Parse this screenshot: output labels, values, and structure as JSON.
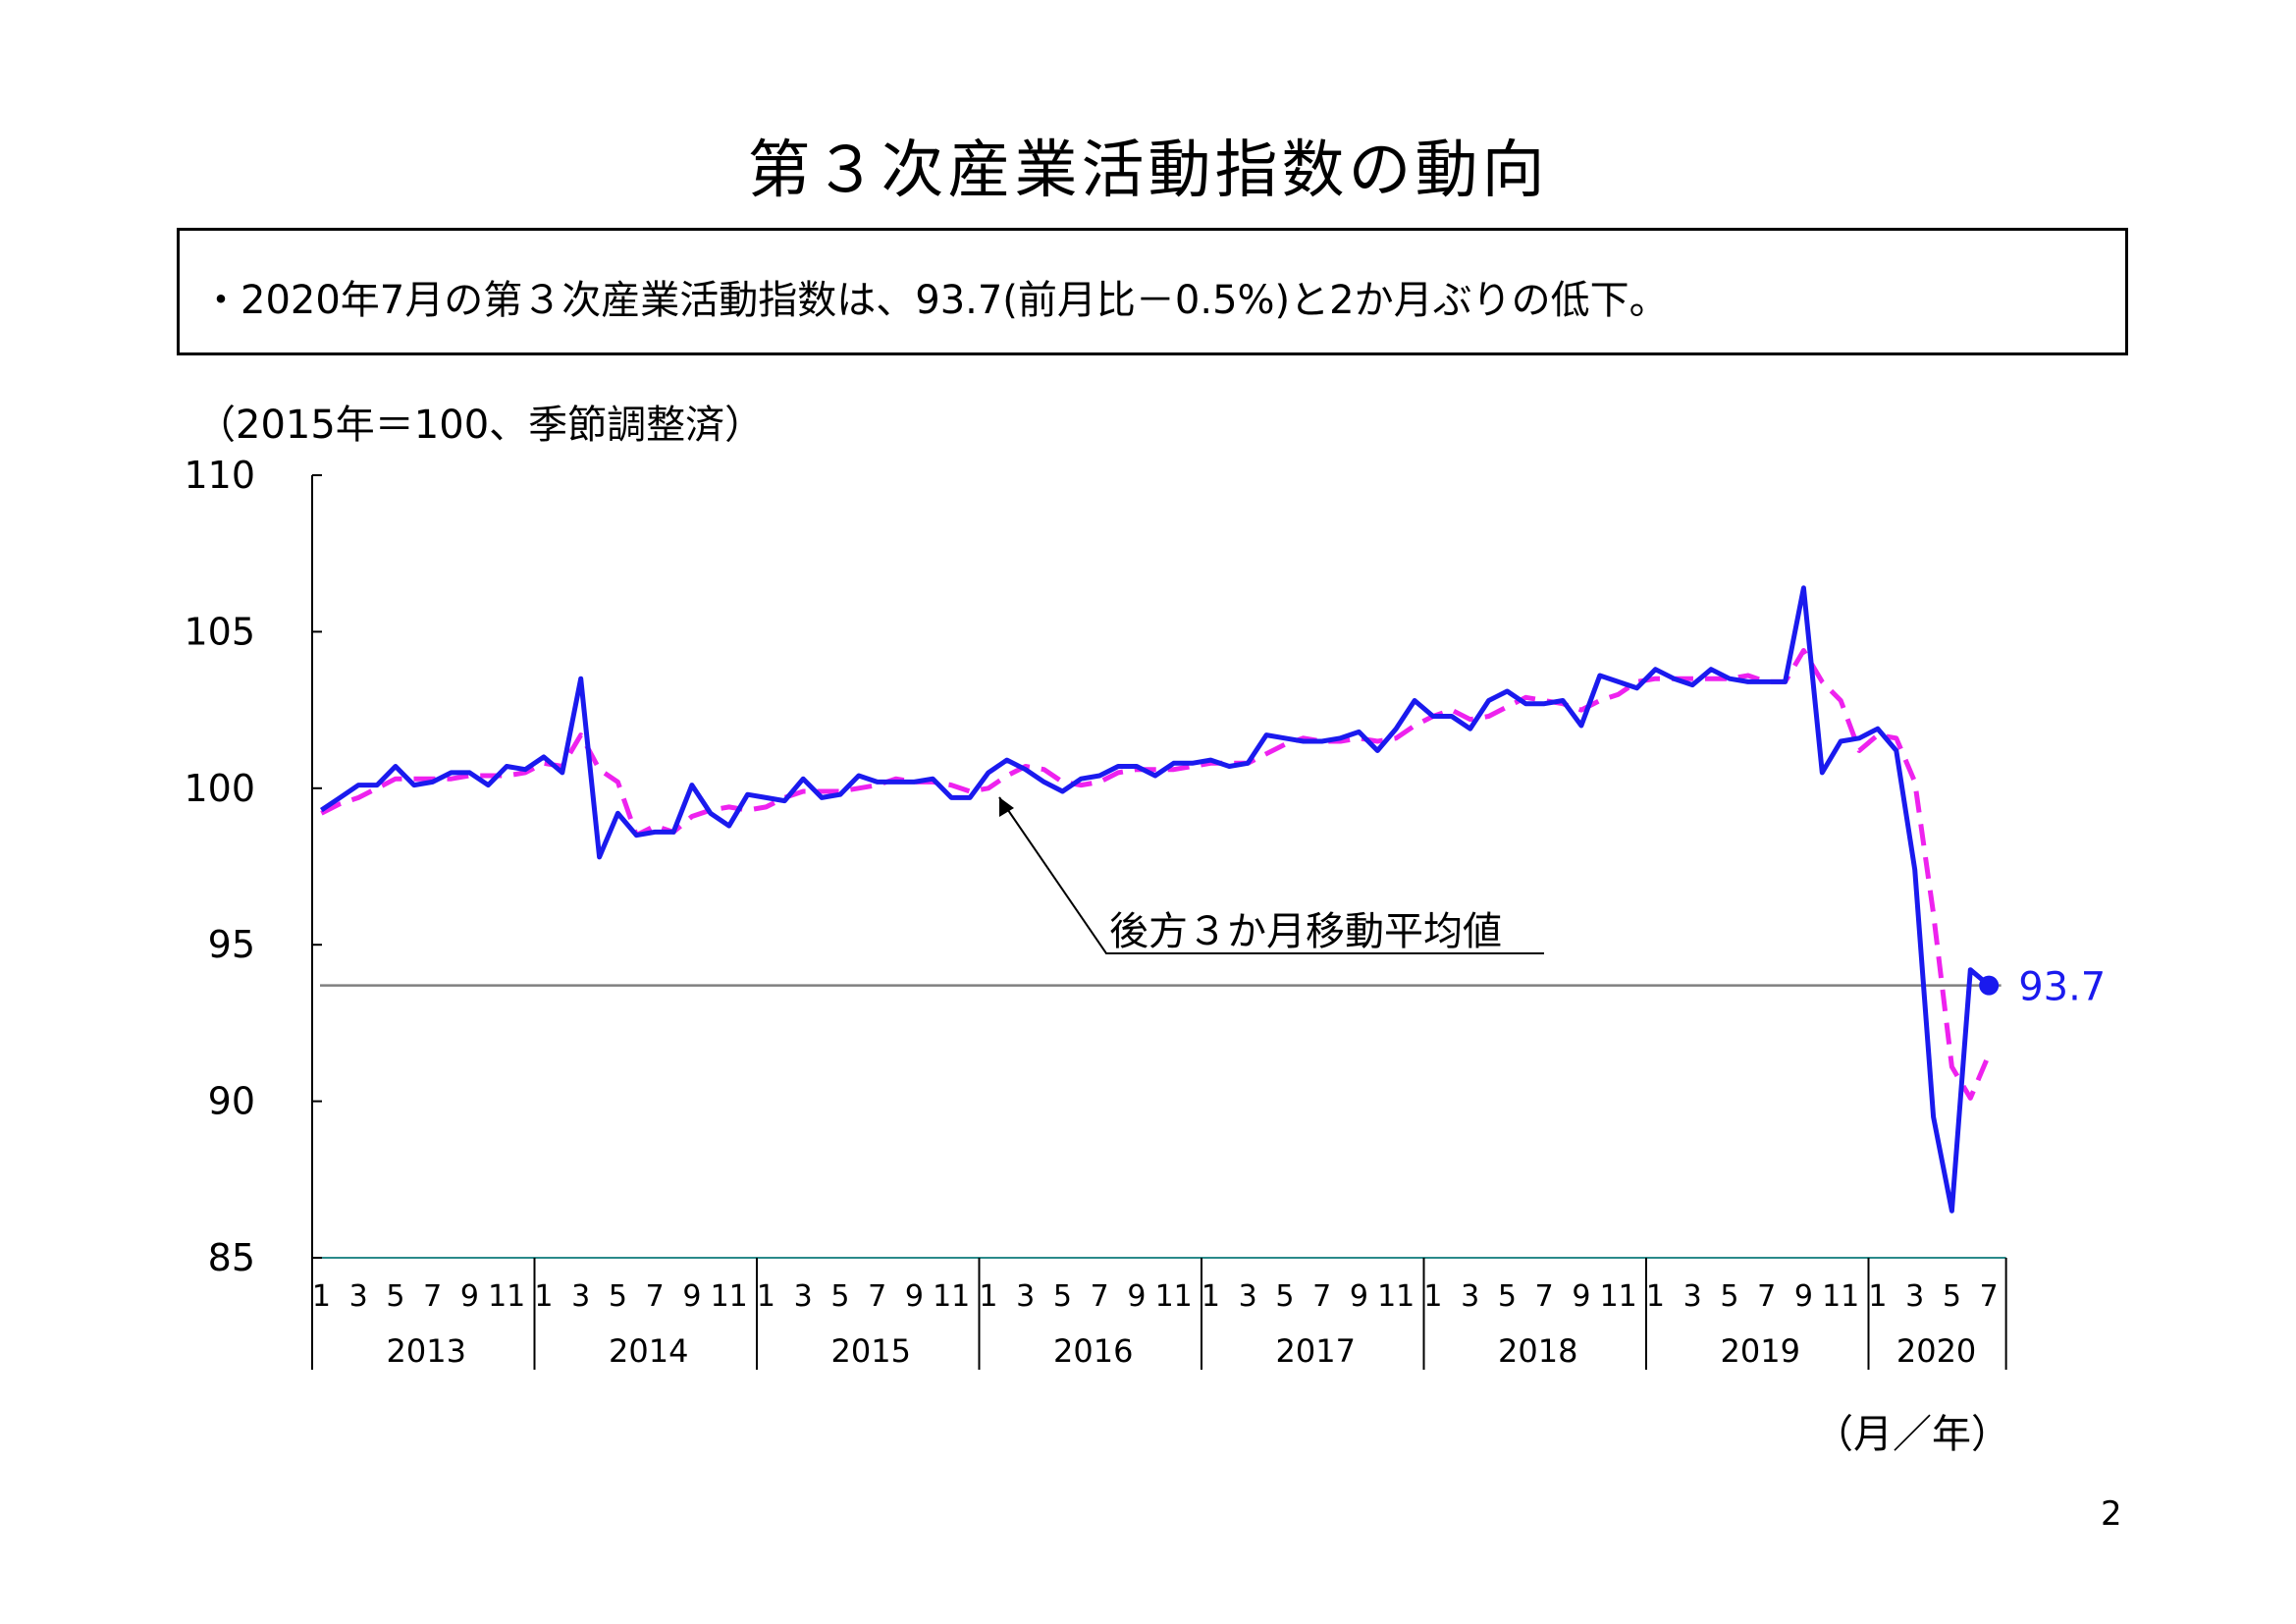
{
  "page": {
    "title": "第３次産業活動指数の動向",
    "summary": "・2020年7月の第３次産業活動指数は、93.7(前月比－0.5%)と2か月ぶりの低下。",
    "unit_label": "（2015年＝100、季節調整済）",
    "x_unit_label": "（月／年）",
    "page_number": "2"
  },
  "chart_data": {
    "type": "line",
    "title": "",
    "xlabel": "（月／年）",
    "ylabel": "（2015年＝100、季節調整済）",
    "ylim": [
      85,
      110
    ],
    "yticks": [
      85,
      90,
      95,
      100,
      105,
      110
    ],
    "years": [
      "2013",
      "2014",
      "2015",
      "2016",
      "2017",
      "2018",
      "2019",
      "2020"
    ],
    "month_ticks": [
      "1",
      "3",
      "5",
      "7",
      "9",
      "11"
    ],
    "month_ticks_last_year": [
      "1",
      "3",
      "5",
      "7"
    ],
    "grid": false,
    "colors": {
      "index": "#1a1aee",
      "moving_average": "#ee22ee",
      "reference_line": "#808080",
      "last_label": "#1a1aee"
    },
    "series": [
      {
        "name": "",
        "style": "solid",
        "values": [
          99.3,
          99.7,
          100.1,
          100.1,
          100.7,
          100.1,
          100.2,
          100.5,
          100.5,
          100.1,
          100.7,
          100.6,
          101.0,
          100.5,
          103.5,
          97.8,
          99.2,
          98.5,
          98.6,
          98.6,
          100.1,
          99.2,
          98.8,
          99.8,
          99.7,
          99.6,
          100.3,
          99.7,
          99.8,
          100.4,
          100.2,
          100.2,
          100.2,
          100.3,
          99.7,
          99.7,
          100.5,
          100.9,
          100.6,
          100.2,
          99.9,
          100.3,
          100.4,
          100.7,
          100.7,
          100.4,
          100.8,
          100.8,
          100.9,
          100.7,
          100.8,
          101.7,
          101.6,
          101.5,
          101.5,
          101.6,
          101.8,
          101.2,
          101.9,
          102.8,
          102.3,
          102.3,
          101.9,
          102.8,
          103.1,
          102.7,
          102.7,
          102.8,
          102.0,
          103.6,
          103.4,
          103.2,
          103.8,
          103.5,
          103.3,
          103.8,
          103.5,
          103.4,
          103.4,
          103.4,
          106.4,
          100.5,
          101.5,
          101.6,
          101.9,
          101.2,
          97.4,
          89.5,
          86.5,
          94.2,
          93.7
        ]
      },
      {
        "name": "後方３か月移動平均値",
        "style": "dashed",
        "values": [
          99.2,
          99.5,
          99.7,
          100.0,
          100.3,
          100.3,
          100.3,
          100.3,
          100.4,
          100.4,
          100.4,
          100.5,
          100.8,
          100.7,
          101.7,
          100.6,
          100.2,
          98.5,
          98.8,
          98.6,
          99.1,
          99.3,
          99.4,
          99.3,
          99.4,
          99.7,
          99.9,
          99.9,
          99.9,
          100.0,
          100.1,
          100.3,
          100.2,
          100.2,
          100.1,
          99.9,
          100.0,
          100.4,
          100.7,
          100.6,
          100.2,
          100.1,
          100.2,
          100.5,
          100.6,
          100.6,
          100.6,
          100.7,
          100.8,
          100.8,
          100.8,
          101.1,
          101.4,
          101.6,
          101.5,
          101.5,
          101.6,
          101.5,
          101.6,
          102.0,
          102.3,
          102.5,
          102.2,
          102.3,
          102.6,
          102.9,
          102.8,
          102.7,
          102.5,
          102.8,
          103.0,
          103.4,
          103.5,
          103.5,
          103.5,
          103.5,
          103.5,
          103.6,
          103.4,
          103.4,
          104.4,
          103.4,
          102.8,
          101.2,
          101.7,
          101.6,
          100.2,
          96.0,
          91.1,
          90.1,
          91.5
        ]
      }
    ],
    "annotation": "後方３か月移動平均値",
    "last_value_label": "93.7",
    "reference_line_value": 93.7
  }
}
